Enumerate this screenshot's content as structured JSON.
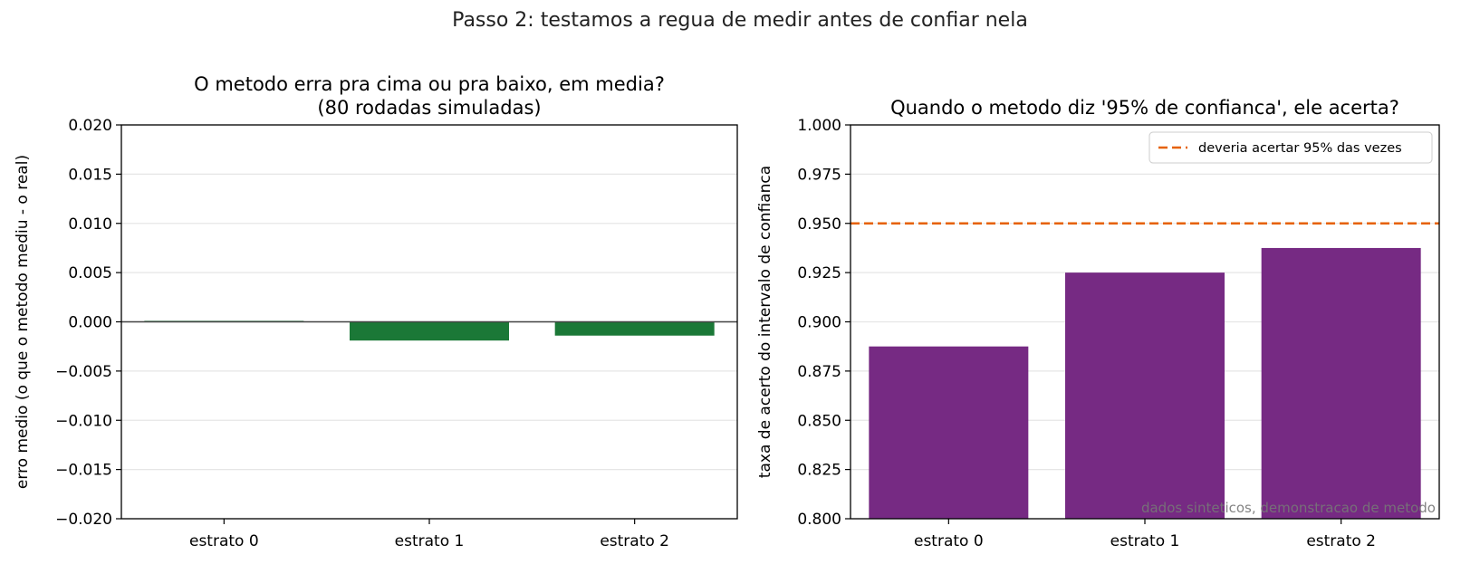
{
  "suptitle": "Passo 2: testamos a regua de medir antes de confiar nela",
  "chart_data": [
    {
      "type": "bar",
      "title_lines": [
        "O metodo erra pra cima ou pra baixo, em media?",
        "(80 rodadas simuladas)"
      ],
      "xlabel": "",
      "ylabel": "erro medio (o que o metodo mediu - o real)",
      "categories": [
        "estrato 0",
        "estrato 1",
        "estrato 2"
      ],
      "values": [
        0.0001,
        -0.0019,
        -0.0014
      ],
      "ylim": [
        -0.02,
        0.02
      ],
      "yticks": [
        -0.02,
        -0.015,
        -0.01,
        -0.005,
        0.0,
        0.005,
        0.01,
        0.015,
        0.02
      ],
      "ytick_labels": [
        "−0.020",
        "−0.015",
        "−0.010",
        "−0.005",
        "0.000",
        "0.005",
        "0.010",
        "0.015",
        "0.020"
      ],
      "bar_color": "#1b7837",
      "zero_line": true,
      "grid": "y"
    },
    {
      "type": "bar",
      "title_lines": [
        "Quando o metodo diz '95% de confianca', ele acerta?"
      ],
      "xlabel": "",
      "ylabel": "taxa de acerto do intervalo de confianca",
      "categories": [
        "estrato 0",
        "estrato 1",
        "estrato 2"
      ],
      "values": [
        0.8875,
        0.925,
        0.9375
      ],
      "ylim": [
        0.8,
        1.0
      ],
      "yticks": [
        0.8,
        0.825,
        0.85,
        0.875,
        0.9,
        0.925,
        0.95,
        0.975,
        1.0
      ],
      "ytick_labels": [
        "0.800",
        "0.825",
        "0.850",
        "0.875",
        "0.900",
        "0.925",
        "0.950",
        "0.975",
        "1.000"
      ],
      "bar_color": "#762a83",
      "reference_line": {
        "value": 0.95,
        "label": "deveria acertar 95% das vezes",
        "color": "#e66101"
      },
      "legend": "top-right",
      "annotation": "dados sinteticos, demonstracao de metodo",
      "grid": "y"
    }
  ]
}
